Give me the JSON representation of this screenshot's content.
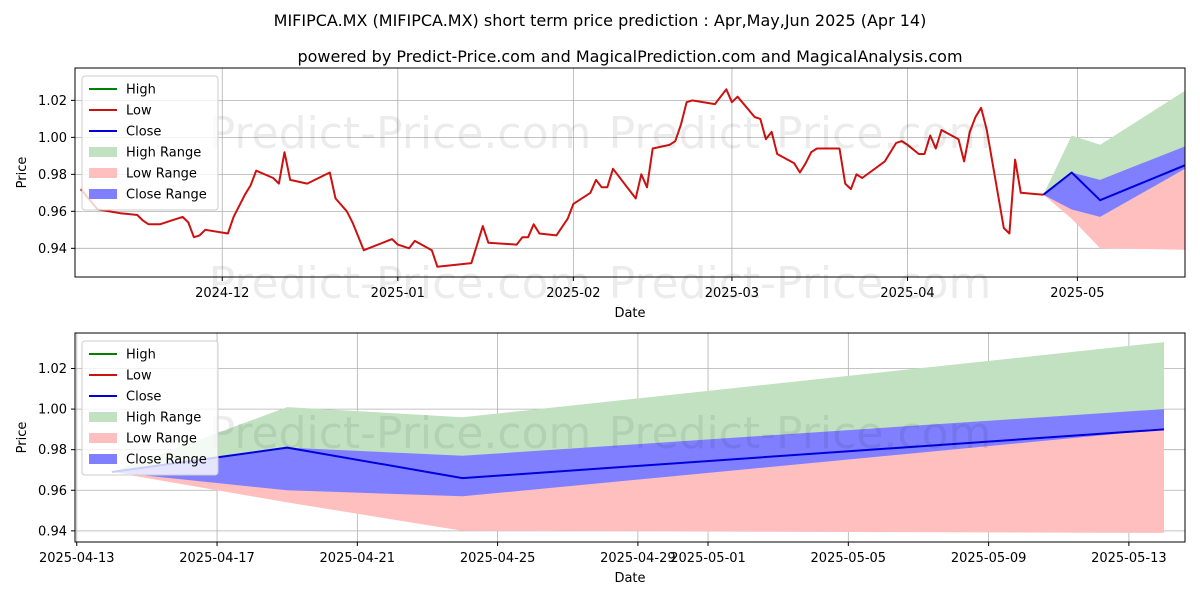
{
  "titles": {
    "main": "MIFIPCA.MX (MIFIPCA.MX) short term price prediction : Apr,May,Jun 2025 (Apr 14)",
    "sub": "powered by Predict-Price.com and MagicalPrediction.com and MagicalAnalysis.com"
  },
  "watermark": "Predict-Price.com",
  "colors": {
    "high": "#008000",
    "low": "#cc1111",
    "close": "#0000dd",
    "high_range": "#c1e1c1",
    "low_range": "#ffbfbf",
    "close_range": "#7f7fff"
  },
  "chart_data": [
    {
      "type": "line",
      "xlabel": "Date",
      "ylabel": "Price",
      "xlim": [
        "2024-11-05",
        "2025-05-20"
      ],
      "ylim": [
        0.9245,
        1.0375
      ],
      "grid": true,
      "legend_position": "top-left",
      "x_ticks": [
        {
          "date": "2024-12-01",
          "label": "2024-12"
        },
        {
          "date": "2025-01-01",
          "label": "2025-01"
        },
        {
          "date": "2025-02-01",
          "label": "2025-02"
        },
        {
          "date": "2025-03-01",
          "label": "2025-03"
        },
        {
          "date": "2025-04-01",
          "label": "2025-04"
        },
        {
          "date": "2025-05-01",
          "label": "2025-05"
        }
      ],
      "y_ticks": [
        0.94,
        0.96,
        0.98,
        1.0,
        1.02
      ],
      "y_tick_labels": [
        "0.94",
        "0.96",
        "0.98",
        "1.00",
        "1.02"
      ],
      "legend": [
        "High",
        "Low",
        "Close",
        "High Range",
        "Low Range",
        "Close Range"
      ],
      "series": [
        {
          "name": "Low",
          "points": [
            [
              "2024-11-06",
              0.972
            ],
            [
              "2024-11-09",
              0.961
            ],
            [
              "2024-11-13",
              0.959
            ],
            [
              "2024-11-16",
              0.958
            ],
            [
              "2024-11-17",
              0.955
            ],
            [
              "2024-11-18",
              0.953
            ],
            [
              "2024-11-20",
              0.953
            ],
            [
              "2024-11-22",
              0.955
            ],
            [
              "2024-11-24",
              0.957
            ],
            [
              "2024-11-25",
              0.954
            ],
            [
              "2024-11-26",
              0.946
            ],
            [
              "2024-11-27",
              0.947
            ],
            [
              "2024-11-28",
              0.95
            ],
            [
              "2024-12-02",
              0.948
            ],
            [
              "2024-12-03",
              0.957
            ],
            [
              "2024-12-05",
              0.969
            ],
            [
              "2024-12-06",
              0.974
            ],
            [
              "2024-12-07",
              0.982
            ],
            [
              "2024-12-10",
              0.978
            ],
            [
              "2024-12-11",
              0.975
            ],
            [
              "2024-12-12",
              0.992
            ],
            [
              "2024-12-13",
              0.977
            ],
            [
              "2024-12-16",
              0.975
            ],
            [
              "2024-12-20",
              0.981
            ],
            [
              "2024-12-21",
              0.967
            ],
            [
              "2024-12-23",
              0.96
            ],
            [
              "2024-12-24",
              0.954
            ],
            [
              "2024-12-26",
              0.939
            ],
            [
              "2024-12-31",
              0.945
            ],
            [
              "2025-01-01",
              0.942
            ],
            [
              "2025-01-03",
              0.94
            ],
            [
              "2025-01-04",
              0.944
            ],
            [
              "2025-01-07",
              0.939
            ],
            [
              "2025-01-08",
              0.93
            ],
            [
              "2025-01-14",
              0.932
            ],
            [
              "2025-01-16",
              0.952
            ],
            [
              "2025-01-17",
              0.943
            ],
            [
              "2025-01-22",
              0.942
            ],
            [
              "2025-01-23",
              0.946
            ],
            [
              "2025-01-24",
              0.946
            ],
            [
              "2025-01-25",
              0.953
            ],
            [
              "2025-01-26",
              0.948
            ],
            [
              "2025-01-29",
              0.947
            ],
            [
              "2025-01-31",
              0.956
            ],
            [
              "2025-02-01",
              0.964
            ],
            [
              "2025-02-04",
              0.97
            ],
            [
              "2025-02-05",
              0.977
            ],
            [
              "2025-02-06",
              0.973
            ],
            [
              "2025-02-07",
              0.973
            ],
            [
              "2025-02-08",
              0.983
            ],
            [
              "2025-02-12",
              0.967
            ],
            [
              "2025-02-13",
              0.98
            ],
            [
              "2025-02-14",
              0.973
            ],
            [
              "2025-02-15",
              0.994
            ],
            [
              "2025-02-18",
              0.996
            ],
            [
              "2025-02-19",
              0.998
            ],
            [
              "2025-02-20",
              1.007
            ],
            [
              "2025-02-21",
              1.019
            ],
            [
              "2025-02-22",
              1.02
            ],
            [
              "2025-02-26",
              1.018
            ],
            [
              "2025-02-28",
              1.026
            ],
            [
              "2025-03-01",
              1.019
            ],
            [
              "2025-03-02",
              1.022
            ],
            [
              "2025-03-05",
              1.011
            ],
            [
              "2025-03-06",
              1.01
            ],
            [
              "2025-03-07",
              0.999
            ],
            [
              "2025-03-08",
              1.003
            ],
            [
              "2025-03-09",
              0.991
            ],
            [
              "2025-03-12",
              0.986
            ],
            [
              "2025-03-13",
              0.981
            ],
            [
              "2025-03-14",
              0.986
            ],
            [
              "2025-03-15",
              0.992
            ],
            [
              "2025-03-16",
              0.994
            ],
            [
              "2025-03-20",
              0.994
            ],
            [
              "2025-03-21",
              0.975
            ],
            [
              "2025-03-22",
              0.972
            ],
            [
              "2025-03-23",
              0.98
            ],
            [
              "2025-03-24",
              0.978
            ],
            [
              "2025-03-28",
              0.987
            ],
            [
              "2025-03-30",
              0.997
            ],
            [
              "2025-03-31",
              0.998
            ],
            [
              "2025-04-01",
              0.996
            ],
            [
              "2025-04-03",
              0.991
            ],
            [
              "2025-04-04",
              0.991
            ],
            [
              "2025-04-05",
              1.001
            ],
            [
              "2025-04-06",
              0.994
            ],
            [
              "2025-04-07",
              1.004
            ],
            [
              "2025-04-10",
              0.999
            ],
            [
              "2025-04-11",
              0.987
            ],
            [
              "2025-04-12",
              1.003
            ],
            [
              "2025-04-13",
              1.011
            ],
            [
              "2025-04-14",
              1.016
            ],
            [
              "2025-04-15",
              1.004
            ],
            [
              "2025-04-18",
              0.951
            ],
            [
              "2025-04-19",
              0.948
            ],
            [
              "2025-04-20",
              0.988
            ],
            [
              "2025-04-21",
              0.97
            ],
            [
              "2025-04-25",
              0.969
            ]
          ]
        },
        {
          "name": "Close",
          "points": [
            [
              "2025-04-25",
              0.969
            ],
            [
              "2025-04-30",
              0.981
            ],
            [
              "2025-05-05",
              0.966
            ],
            [
              "2025-05-24",
              0.99
            ]
          ]
        }
      ],
      "ranges": [
        {
          "name": "High Range",
          "upper": [
            [
              "2025-04-25",
              0.969
            ],
            [
              "2025-04-30",
              1.001
            ],
            [
              "2025-05-05",
              0.996
            ],
            [
              "2025-05-24",
              1.033
            ]
          ],
          "lower": [
            [
              "2025-04-25",
              0.969
            ],
            [
              "2025-05-24",
              0.969
            ]
          ]
        },
        {
          "name": "Low Range",
          "upper": [
            [
              "2025-04-25",
              0.969
            ],
            [
              "2025-05-24",
              0.99
            ]
          ],
          "lower": [
            [
              "2025-04-25",
              0.969
            ],
            [
              "2025-04-30",
              0.956
            ],
            [
              "2025-05-05",
              0.94
            ],
            [
              "2025-05-24",
              0.939
            ]
          ]
        },
        {
          "name": "Close Range",
          "upper": [
            [
              "2025-04-25",
              0.969
            ],
            [
              "2025-04-30",
              0.981
            ],
            [
              "2025-05-05",
              0.977
            ],
            [
              "2025-05-24",
              1.0
            ]
          ],
          "lower": [
            [
              "2025-04-25",
              0.969
            ],
            [
              "2025-04-30",
              0.961
            ],
            [
              "2025-05-05",
              0.957
            ],
            [
              "2025-05-24",
              0.99
            ]
          ]
        }
      ]
    },
    {
      "type": "line",
      "xlabel": "Date",
      "ylabel": "Price",
      "xlim": [
        "2025-04-12.95",
        "2025-05-14.6"
      ],
      "ylim": [
        0.9345,
        1.0375
      ],
      "grid": true,
      "legend_position": "top-left",
      "x_ticks": [
        {
          "date": "2025-04-13",
          "label": "2025-04-13"
        },
        {
          "date": "2025-04-17",
          "label": "2025-04-17"
        },
        {
          "date": "2025-04-21",
          "label": "2025-04-21"
        },
        {
          "date": "2025-04-25",
          "label": "2025-04-25"
        },
        {
          "date": "2025-04-29",
          "label": "2025-04-29"
        },
        {
          "date": "2025-05-01",
          "label": "2025-05-01"
        },
        {
          "date": "2025-05-05",
          "label": "2025-05-05"
        },
        {
          "date": "2025-05-09",
          "label": "2025-05-09"
        },
        {
          "date": "2025-05-13",
          "label": "2025-05-13"
        }
      ],
      "y_ticks": [
        0.94,
        0.96,
        0.98,
        1.0,
        1.02
      ],
      "y_tick_labels": [
        "0.94",
        "0.96",
        "0.98",
        "1.00",
        "1.02"
      ],
      "legend": [
        "High",
        "Low",
        "Close",
        "High Range",
        "Low Range",
        "Close Range"
      ],
      "series": [
        {
          "name": "Close",
          "points": [
            [
              "2025-04-14",
              0.969
            ],
            [
              "2025-04-19",
              0.981
            ],
            [
              "2025-04-24",
              0.966
            ],
            [
              "2025-05-14",
              0.99
            ]
          ]
        }
      ],
      "ranges": [
        {
          "name": "High Range",
          "upper": [
            [
              "2025-04-14",
              0.969
            ],
            [
              "2025-04-19",
              1.001
            ],
            [
              "2025-04-24",
              0.996
            ],
            [
              "2025-05-14",
              1.033
            ]
          ],
          "lower": [
            [
              "2025-04-14",
              0.969
            ],
            [
              "2025-05-14",
              0.969
            ]
          ]
        },
        {
          "name": "Low Range",
          "upper": [
            [
              "2025-04-14",
              0.969
            ],
            [
              "2025-05-14",
              0.99
            ]
          ],
          "lower": [
            [
              "2025-04-14",
              0.969
            ],
            [
              "2025-04-19",
              0.954
            ],
            [
              "2025-04-24",
              0.94
            ],
            [
              "2025-05-14",
              0.939
            ]
          ]
        },
        {
          "name": "Close Range",
          "upper": [
            [
              "2025-04-14",
              0.969
            ],
            [
              "2025-04-19",
              0.981
            ],
            [
              "2025-04-24",
              0.977
            ],
            [
              "2025-05-14",
              1.0
            ]
          ],
          "lower": [
            [
              "2025-04-14",
              0.969
            ],
            [
              "2025-04-19",
              0.96
            ],
            [
              "2025-04-24",
              0.957
            ],
            [
              "2025-05-14",
              0.99
            ]
          ]
        }
      ]
    }
  ]
}
